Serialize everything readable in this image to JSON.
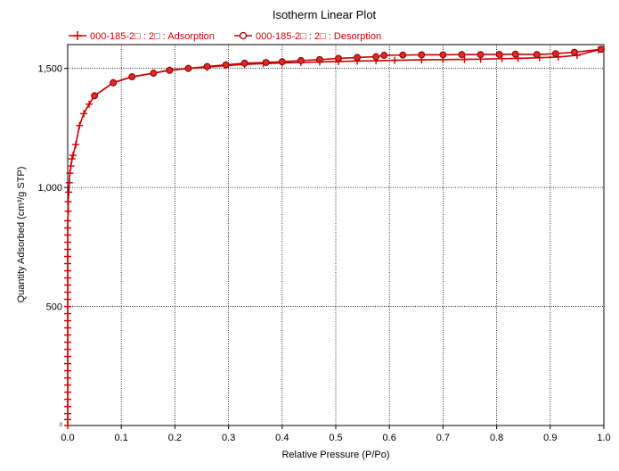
{
  "chart_data": {
    "type": "line",
    "title": "Isotherm Linear Plot",
    "xlabel": "Relative Pressure (P/Po)",
    "ylabel": "Quantity Adsorbed (cm³/g STP)",
    "xlim": [
      0,
      1.0
    ],
    "ylim": [
      0,
      1600
    ],
    "x_ticks": [
      0.0,
      0.1,
      0.2,
      0.3,
      0.4,
      0.5,
      0.6,
      0.7,
      0.8,
      0.9,
      1.0
    ],
    "x_tick_labels": [
      "0.0",
      "0.1",
      "0.2",
      "0.3",
      "0.4",
      "0.5",
      "0.6",
      "0.7",
      "0.8",
      "0.9",
      "1.0"
    ],
    "y_ticks": [
      0,
      500,
      1000,
      1500
    ],
    "y_tick_labels": [
      "0",
      "500",
      "1,000",
      "1,500"
    ],
    "grid": true,
    "legend_position": "top",
    "series": [
      {
        "name": "000-185-2□  : 2□  : Adsorption",
        "marker": "plus",
        "color": "#cc0000",
        "points": [
          [
            0.0,
            0
          ],
          [
            0.0,
            25
          ],
          [
            0.0,
            50
          ],
          [
            0.0,
            80
          ],
          [
            0.0,
            110
          ],
          [
            0.0,
            140
          ],
          [
            0.0,
            170
          ],
          [
            0.0,
            200
          ],
          [
            0.0,
            230
          ],
          [
            0.0,
            260
          ],
          [
            0.0,
            290
          ],
          [
            0.0,
            320
          ],
          [
            0.0,
            350
          ],
          [
            0.0,
            380
          ],
          [
            0.0,
            410
          ],
          [
            0.0,
            440
          ],
          [
            0.0,
            470
          ],
          [
            0.0,
            500
          ],
          [
            0.0,
            530
          ],
          [
            0.0,
            560
          ],
          [
            0.0,
            590
          ],
          [
            0.0,
            620
          ],
          [
            0.0,
            650
          ],
          [
            0.0,
            680
          ],
          [
            0.0,
            710
          ],
          [
            0.0,
            740
          ],
          [
            0.0,
            770
          ],
          [
            0.0,
            800
          ],
          [
            0.0,
            830
          ],
          [
            0.0,
            860
          ],
          [
            0.001,
            900
          ],
          [
            0.001,
            940
          ],
          [
            0.002,
            980
          ],
          [
            0.003,
            1020
          ],
          [
            0.004,
            1060
          ],
          [
            0.006,
            1090
          ],
          [
            0.008,
            1120
          ],
          [
            0.01,
            1135
          ],
          [
            0.015,
            1180
          ],
          [
            0.022,
            1260
          ],
          [
            0.03,
            1310
          ],
          [
            0.04,
            1350
          ],
          [
            0.05,
            1385
          ],
          [
            0.085,
            1440
          ],
          [
            0.12,
            1465
          ],
          [
            0.16,
            1480
          ],
          [
            0.19,
            1493
          ],
          [
            0.225,
            1500
          ],
          [
            0.26,
            1505
          ],
          [
            0.295,
            1512
          ],
          [
            0.33,
            1517
          ],
          [
            0.365,
            1520
          ],
          [
            0.4,
            1523
          ],
          [
            0.435,
            1525
          ],
          [
            0.47,
            1527
          ],
          [
            0.505,
            1529
          ],
          [
            0.54,
            1531
          ],
          [
            0.575,
            1532
          ],
          [
            0.61,
            1534
          ],
          [
            0.66,
            1536
          ],
          [
            0.7,
            1537
          ],
          [
            0.74,
            1538
          ],
          [
            0.77,
            1539
          ],
          [
            0.81,
            1541
          ],
          [
            0.84,
            1542
          ],
          [
            0.88,
            1545
          ],
          [
            0.915,
            1548
          ],
          [
            0.95,
            1555
          ],
          [
            0.99,
            1578
          ]
        ]
      },
      {
        "name": "000-185-2□  : 2□  : Desorption",
        "marker": "circle",
        "color": "#cc0000",
        "points": [
          [
            0.995,
            1580
          ],
          [
            0.945,
            1568
          ],
          [
            0.91,
            1562
          ],
          [
            0.875,
            1558
          ],
          [
            0.835,
            1560
          ],
          [
            0.805,
            1559
          ],
          [
            0.77,
            1558
          ],
          [
            0.735,
            1558
          ],
          [
            0.7,
            1557
          ],
          [
            0.66,
            1557
          ],
          [
            0.625,
            1556
          ],
          [
            0.59,
            1555
          ],
          [
            0.575,
            1549
          ],
          [
            0.54,
            1546
          ],
          [
            0.505,
            1542
          ],
          [
            0.47,
            1537
          ],
          [
            0.435,
            1533
          ],
          [
            0.4,
            1528
          ],
          [
            0.37,
            1525
          ],
          [
            0.33,
            1522
          ],
          [
            0.295,
            1515
          ],
          [
            0.26,
            1508
          ],
          [
            0.225,
            1500
          ],
          [
            0.19,
            1492
          ],
          [
            0.16,
            1480
          ],
          [
            0.12,
            1465
          ],
          [
            0.085,
            1440
          ],
          [
            0.05,
            1385
          ]
        ]
      }
    ]
  }
}
